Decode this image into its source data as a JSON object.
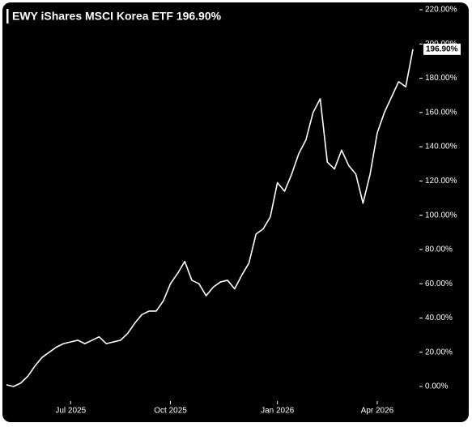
{
  "chart_data": {
    "type": "line",
    "title": "EWY iShares MSCI Korea ETF 196.90%",
    "categories": [
      null,
      null,
      null,
      null,
      null,
      null,
      null,
      null,
      null,
      "Jul 2025",
      null,
      null,
      null,
      null,
      null,
      null,
      null,
      null,
      null,
      null,
      null,
      null,
      null,
      "Oct 2025",
      null,
      null,
      null,
      null,
      null,
      null,
      null,
      null,
      null,
      null,
      null,
      null,
      null,
      null,
      "Jan 2026",
      null,
      null,
      null,
      null,
      null,
      null,
      null,
      null,
      null,
      null,
      null,
      null,
      null,
      "Apr 2026",
      null,
      null,
      null,
      null,
      null
    ],
    "series": [
      {
        "name": "EWY",
        "color": "#ffffff",
        "values": [
          1,
          0,
          2,
          6,
          12,
          17,
          20,
          23,
          25,
          26,
          27,
          25,
          27,
          29,
          25,
          26,
          27,
          31,
          37,
          42,
          44,
          44,
          50,
          60,
          66,
          73,
          62,
          60,
          53,
          58,
          61,
          62,
          57,
          65,
          72,
          89,
          92,
          99,
          119,
          114,
          124,
          136,
          144,
          160,
          168,
          131,
          127,
          138,
          129,
          124,
          107,
          124,
          148,
          160,
          169,
          178,
          175,
          196.9
        ],
        "value_labels": [
          null,
          null,
          null,
          null,
          null,
          null,
          null,
          null,
          null,
          null,
          null,
          null,
          null,
          null,
          null,
          null,
          null,
          null,
          null,
          null,
          null,
          null,
          null,
          null,
          null,
          null,
          null,
          null,
          null,
          null,
          null,
          null,
          null,
          null,
          null,
          null,
          null,
          null,
          null,
          null,
          null,
          null,
          null,
          null,
          null,
          null,
          null,
          null,
          null,
          null,
          null,
          null,
          null,
          null,
          null,
          null,
          null,
          "196.90%"
        ]
      }
    ],
    "ylim": [
      -2,
      220
    ],
    "yticks": [
      {
        "value": 0,
        "label": "0.00%"
      },
      {
        "value": 20,
        "label": "20.00%"
      },
      {
        "value": 40,
        "label": "40.00%"
      },
      {
        "value": 60,
        "label": "60.00%"
      },
      {
        "value": 80,
        "label": "80.00%"
      },
      {
        "value": 100,
        "label": "100.00%"
      },
      {
        "value": 120,
        "label": "120.00%"
      },
      {
        "value": 140,
        "label": "140.00%"
      },
      {
        "value": 160,
        "label": "160.00%"
      },
      {
        "value": 180,
        "label": "180.00%"
      },
      {
        "value": 200,
        "label": "200.00%"
      },
      {
        "value": 220,
        "label": "220.00%"
      }
    ],
    "y_axis_side": "right",
    "grid": false,
    "background": "#000000"
  }
}
